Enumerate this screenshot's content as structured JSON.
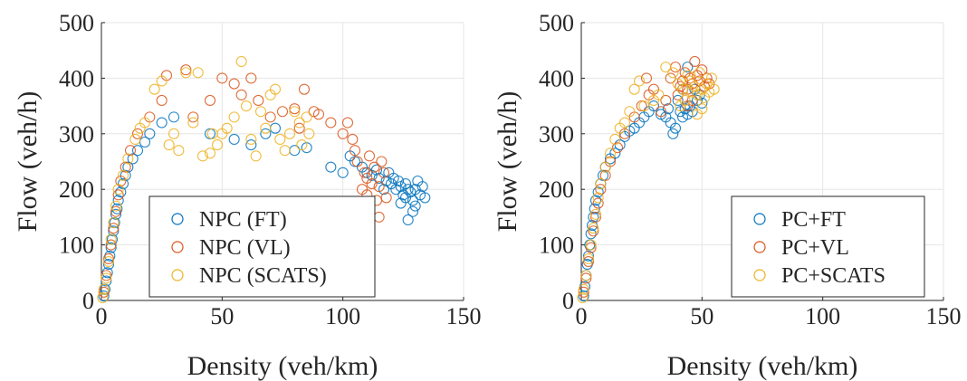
{
  "chart_data": [
    {
      "type": "scatter",
      "xlabel": "Density (veh/km)",
      "ylabel": "Flow (veh/h)",
      "xlim": [
        0,
        150
      ],
      "ylim": [
        0,
        500
      ],
      "xticks": [
        "0",
        "50",
        "100",
        "150"
      ],
      "yticks": [
        "0",
        "100",
        "200",
        "300",
        "400",
        "500"
      ],
      "grid": true,
      "legend_position": "bottom-right",
      "series": [
        {
          "name": "NPC (FT)",
          "color": "#0072BD",
          "points": [
            [
              1,
              8
            ],
            [
              1.5,
              20
            ],
            [
              2,
              35
            ],
            [
              2.5,
              50
            ],
            [
              3,
              65
            ],
            [
              3.5,
              80
            ],
            [
              4,
              95
            ],
            [
              4.5,
              110
            ],
            [
              5,
              125
            ],
            [
              5.5,
              140
            ],
            [
              6,
              155
            ],
            [
              6.5,
              165
            ],
            [
              7,
              180
            ],
            [
              8,
              195
            ],
            [
              9,
              210
            ],
            [
              10,
              225
            ],
            [
              11,
              240
            ],
            [
              13,
              255
            ],
            [
              15,
              270
            ],
            [
              18,
              285
            ],
            [
              20,
              300
            ],
            [
              25,
              320
            ],
            [
              30,
              330
            ],
            [
              45,
              300
            ],
            [
              55,
              290
            ],
            [
              62,
              280
            ],
            [
              68,
              300
            ],
            [
              72,
              310
            ],
            [
              80,
              270
            ],
            [
              85,
              275
            ],
            [
              95,
              240
            ],
            [
              100,
              230
            ],
            [
              103,
              260
            ],
            [
              105,
              250
            ],
            [
              108,
              240
            ],
            [
              110,
              230
            ],
            [
              112,
              225
            ],
            [
              115,
              220
            ],
            [
              118,
              215
            ],
            [
              120,
              210
            ],
            [
              122,
              200
            ],
            [
              124,
              205
            ],
            [
              125,
              190
            ],
            [
              126,
              210
            ],
            [
              127,
              200
            ],
            [
              128,
              195
            ],
            [
              129,
              180
            ],
            [
              130,
              170
            ],
            [
              130,
              200
            ],
            [
              131,
              215
            ],
            [
              132,
              190
            ],
            [
              133,
              205
            ],
            [
              134,
              185
            ],
            [
              129,
              160
            ],
            [
              127,
              145
            ],
            [
              126,
              185
            ],
            [
              124,
              175
            ],
            [
              123,
              215
            ],
            [
              121,
              220
            ],
            [
              119,
              230
            ],
            [
              117,
              200
            ],
            [
              114,
              235
            ]
          ]
        },
        {
          "name": "NPC (VL)",
          "color": "#D95319",
          "points": [
            [
              1,
              15
            ],
            [
              2,
              45
            ],
            [
              3,
              75
            ],
            [
              4,
              100
            ],
            [
              5,
              130
            ],
            [
              6,
              160
            ],
            [
              7,
              190
            ],
            [
              8,
              215
            ],
            [
              10,
              240
            ],
            [
              12,
              270
            ],
            [
              15,
              300
            ],
            [
              20,
              330
            ],
            [
              25,
              360
            ],
            [
              27,
              405
            ],
            [
              35,
              415
            ],
            [
              38,
              330
            ],
            [
              45,
              360
            ],
            [
              50,
              400
            ],
            [
              55,
              390
            ],
            [
              58,
              370
            ],
            [
              62,
              400
            ],
            [
              65,
              360
            ],
            [
              70,
              330
            ],
            [
              75,
              340
            ],
            [
              80,
              345
            ],
            [
              82,
              310
            ],
            [
              84,
              380
            ],
            [
              88,
              340
            ],
            [
              90,
              335
            ],
            [
              95,
              320
            ],
            [
              100,
              300
            ],
            [
              102,
              320
            ],
            [
              104,
              290
            ],
            [
              106,
              250
            ],
            [
              108,
              200
            ],
            [
              109,
              230
            ],
            [
              110,
              190
            ],
            [
              111,
              260
            ],
            [
              112,
              210
            ],
            [
              113,
              240
            ],
            [
              114,
              180
            ],
            [
              115,
              205
            ],
            [
              116,
              250
            ],
            [
              117,
              230
            ],
            [
              118,
              185
            ],
            [
              115,
              150
            ],
            [
              110,
              220
            ],
            [
              105,
              270
            ]
          ]
        },
        {
          "name": "NPC (SCATS)",
          "color": "#EDB120",
          "points": [
            [
              0.5,
              5
            ],
            [
              1,
              20
            ],
            [
              2,
              40
            ],
            [
              3,
              70
            ],
            [
              4,
              110
            ],
            [
              5,
              140
            ],
            [
              6,
              170
            ],
            [
              7,
              200
            ],
            [
              9,
              225
            ],
            [
              11,
              255
            ],
            [
              14,
              290
            ],
            [
              16,
              310
            ],
            [
              18,
              320
            ],
            [
              22,
              380
            ],
            [
              25,
              395
            ],
            [
              28,
              280
            ],
            [
              32,
              270
            ],
            [
              35,
              410
            ],
            [
              40,
              410
            ],
            [
              42,
              260
            ],
            [
              46,
              300
            ],
            [
              48,
              280
            ],
            [
              50,
              300
            ],
            [
              52,
              310
            ],
            [
              55,
              330
            ],
            [
              58,
              430
            ],
            [
              60,
              350
            ],
            [
              62,
              290
            ],
            [
              64,
              260
            ],
            [
              66,
              340
            ],
            [
              68,
              310
            ],
            [
              70,
              370
            ],
            [
              72,
              380
            ],
            [
              74,
              290
            ],
            [
              76,
              270
            ],
            [
              78,
              300
            ],
            [
              80,
              340
            ],
            [
              82,
              320
            ],
            [
              83,
              280
            ],
            [
              85,
              330
            ],
            [
              86,
              300
            ],
            [
              45,
              265
            ],
            [
              38,
              320
            ],
            [
              30,
              300
            ]
          ]
        }
      ]
    },
    {
      "type": "scatter",
      "xlabel": "Density (veh/km)",
      "ylabel": "Flow (veh/h)",
      "xlim": [
        0,
        150
      ],
      "ylim": [
        0,
        500
      ],
      "xticks": [
        "0",
        "50",
        "100",
        "150"
      ],
      "yticks": [
        "0",
        "100",
        "200",
        "300",
        "400",
        "500"
      ],
      "grid": true,
      "legend_position": "bottom-right",
      "series": [
        {
          "name": "PC+FT",
          "color": "#0072BD",
          "points": [
            [
              1,
              8
            ],
            [
              1.5,
              25
            ],
            [
              2,
              45
            ],
            [
              2.5,
              65
            ],
            [
              3,
              80
            ],
            [
              3.5,
              100
            ],
            [
              4,
              120
            ],
            [
              4.5,
              135
            ],
            [
              5,
              150
            ],
            [
              5.5,
              165
            ],
            [
              6,
              180
            ],
            [
              7,
              195
            ],
            [
              8,
              210
            ],
            [
              9,
              225
            ],
            [
              10,
              240
            ],
            [
              12,
              255
            ],
            [
              14,
              265
            ],
            [
              16,
              280
            ],
            [
              18,
              295
            ],
            [
              20,
              305
            ],
            [
              22,
              310
            ],
            [
              24,
              320
            ],
            [
              26,
              330
            ],
            [
              28,
              340
            ],
            [
              30,
              350
            ],
            [
              33,
              335
            ],
            [
              35,
              330
            ],
            [
              37,
              320
            ],
            [
              39,
              310
            ],
            [
              40,
              360
            ],
            [
              41,
              340
            ],
            [
              42,
              330
            ],
            [
              43,
              345
            ],
            [
              44,
              335
            ],
            [
              45,
              350
            ],
            [
              46,
              340
            ],
            [
              47,
              380
            ],
            [
              48,
              360
            ],
            [
              49,
              370
            ],
            [
              50,
              355
            ],
            [
              38,
              300
            ],
            [
              36,
              345
            ],
            [
              42,
              380
            ],
            [
              44,
              420
            ]
          ]
        },
        {
          "name": "PC+VL",
          "color": "#D95319",
          "points": [
            [
              1,
              15
            ],
            [
              2,
              40
            ],
            [
              3,
              70
            ],
            [
              4,
              95
            ],
            [
              5,
              125
            ],
            [
              6,
              150
            ],
            [
              7,
              175
            ],
            [
              8,
              200
            ],
            [
              10,
              225
            ],
            [
              12,
              250
            ],
            [
              15,
              275
            ],
            [
              18,
              300
            ],
            [
              22,
              330
            ],
            [
              25,
              350
            ],
            [
              28,
              370
            ],
            [
              30,
              380
            ],
            [
              33,
              340
            ],
            [
              35,
              360
            ],
            [
              37,
              400
            ],
            [
              39,
              420
            ],
            [
              40,
              370
            ],
            [
              41,
              385
            ],
            [
              42,
              395
            ],
            [
              43,
              410
            ],
            [
              44,
              380
            ],
            [
              45,
              400
            ],
            [
              46,
              390
            ],
            [
              47,
              430
            ],
            [
              48,
              405
            ],
            [
              49,
              395
            ],
            [
              50,
              415
            ],
            [
              51,
              385
            ],
            [
              52,
              400
            ],
            [
              53,
              390
            ],
            [
              46,
              360
            ],
            [
              44,
              350
            ],
            [
              27,
              400
            ]
          ]
        },
        {
          "name": "PC+SCATS",
          "color": "#EDB120",
          "points": [
            [
              0.5,
              5
            ],
            [
              1,
              20
            ],
            [
              2,
              45
            ],
            [
              3,
              75
            ],
            [
              4,
              100
            ],
            [
              5,
              130
            ],
            [
              6,
              155
            ],
            [
              7,
              185
            ],
            [
              8,
              210
            ],
            [
              10,
              240
            ],
            [
              12,
              265
            ],
            [
              14,
              290
            ],
            [
              16,
              310
            ],
            [
              18,
              320
            ],
            [
              20,
              340
            ],
            [
              22,
              380
            ],
            [
              24,
              395
            ],
            [
              26,
              350
            ],
            [
              30,
              360
            ],
            [
              32,
              370
            ],
            [
              35,
              420
            ],
            [
              38,
              410
            ],
            [
              40,
              390
            ],
            [
              42,
              380
            ],
            [
              44,
              405
            ],
            [
              45,
              395
            ],
            [
              46,
              375
            ],
            [
              47,
              385
            ],
            [
              48,
              370
            ],
            [
              49,
              410
            ],
            [
              50,
              380
            ],
            [
              51,
              365
            ],
            [
              52,
              390
            ],
            [
              53,
              375
            ],
            [
              54,
              400
            ],
            [
              55,
              380
            ],
            [
              50,
              345
            ],
            [
              48,
              335
            ],
            [
              43,
              360
            ],
            [
              41,
              350
            ]
          ]
        }
      ]
    }
  ]
}
